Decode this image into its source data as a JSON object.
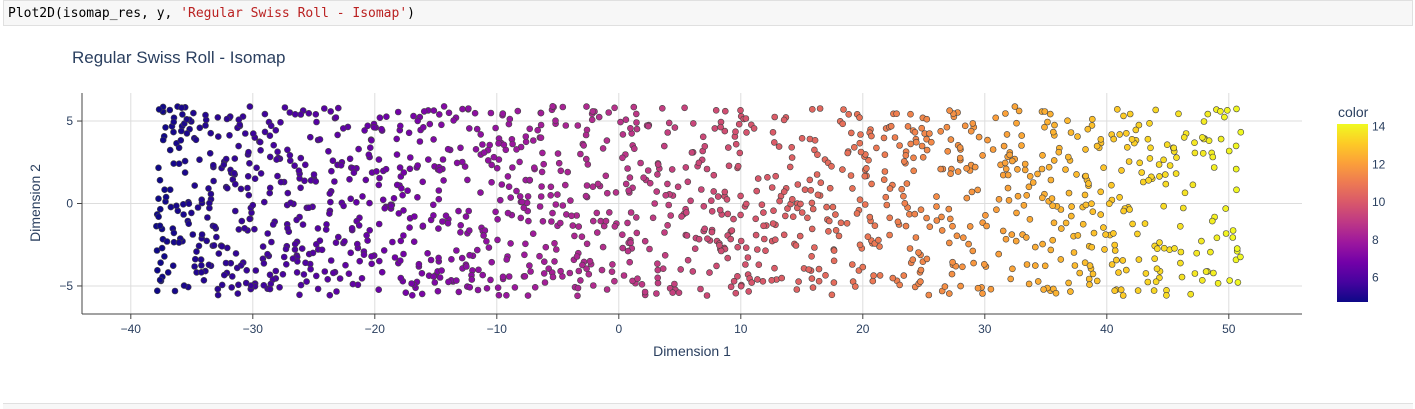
{
  "code": {
    "func": "Plot2D(isomap_res, y, ",
    "arg": "'Regular Swiss Roll - Isomap'",
    "close": ")"
  },
  "chart_data": {
    "type": "scatter",
    "title": "Regular Swiss Roll - Isomap",
    "xlabel": "Dimension 1",
    "ylabel": "Dimension 2",
    "xlim": [
      -44,
      56
    ],
    "ylim": [
      -6.7,
      6.7
    ],
    "x_ticks": [
      -40,
      -30,
      -20,
      -10,
      0,
      10,
      20,
      30,
      40,
      50
    ],
    "x_tick_labels": [
      "−40",
      "−30",
      "−20",
      "−10",
      "0",
      "10",
      "20",
      "30",
      "40",
      "50"
    ],
    "y_ticks": [
      -5,
      0,
      5
    ],
    "y_tick_labels": [
      "−5",
      "0",
      "5"
    ],
    "grid": true,
    "colorscale": "plasma",
    "colorbar": {
      "title": "color",
      "range": [
        4.71,
        14.14
      ],
      "ticks": [
        6,
        8,
        10,
        12,
        14
      ],
      "tick_labels": [
        "6",
        "8",
        "10",
        "12",
        "14"
      ]
    },
    "point_generator": {
      "n": 1500,
      "x_range": [
        -38,
        51
      ],
      "y_range": [
        -5.6,
        5.9
      ],
      "color_of_x": "linear: x=-38 -> 4.71, x=51 -> 14.14"
    },
    "marker_outline": "#444444"
  }
}
